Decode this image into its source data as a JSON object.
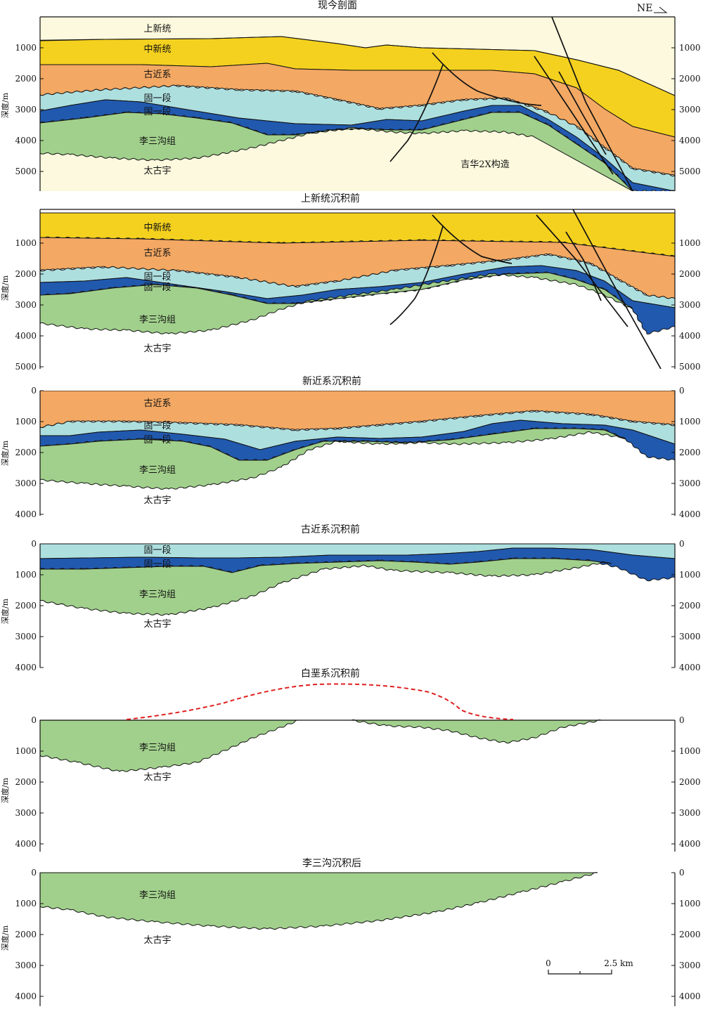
{
  "colors": {
    "upper_neogene": "#fdf9de",
    "middle_neogene": "#f4d11f",
    "paleogene": "#f3a863",
    "gu1_upper": "#aedfdf",
    "gu1_lower": "#2159ae",
    "lisangou": "#a1d08c",
    "taigu": "#ffffff",
    "fault": "#111111",
    "restoration_line": "#e02020"
  },
  "orientation": "NE",
  "y_label": "深度/m",
  "scale_bar": {
    "start": "0",
    "end": "2.5 km"
  },
  "labels": {
    "shangxin": "上新统",
    "zhongxin": "中新统",
    "gujin": "古近系",
    "gu_yi_duan": "固一段",
    "li_san_gou": "李三沟组",
    "tai_gu_yu": "太古宇",
    "structure": "吉华2X构造"
  },
  "panels": [
    {
      "title": "现今剖面",
      "ticks": [
        "1000",
        "2000",
        "3000",
        "4000",
        "5000"
      ]
    },
    {
      "title": "上新统沉积前",
      "ticks": [
        "1000",
        "2000",
        "3000",
        "4000",
        "5000"
      ]
    },
    {
      "title": "新近系沉积前",
      "ticks": [
        "0",
        "1000",
        "2000",
        "3000",
        "4000"
      ]
    },
    {
      "title": "古近系沉积前",
      "ticks": [
        "0",
        "1000",
        "2000",
        "3000",
        "4000"
      ]
    },
    {
      "title": "白垩系沉积前",
      "ticks": [
        "0",
        "1000",
        "2000",
        "3000",
        "4000"
      ]
    },
    {
      "title": "李三沟沉积后",
      "ticks": [
        "0",
        "1000",
        "2000",
        "3000",
        "4000"
      ]
    }
  ]
}
